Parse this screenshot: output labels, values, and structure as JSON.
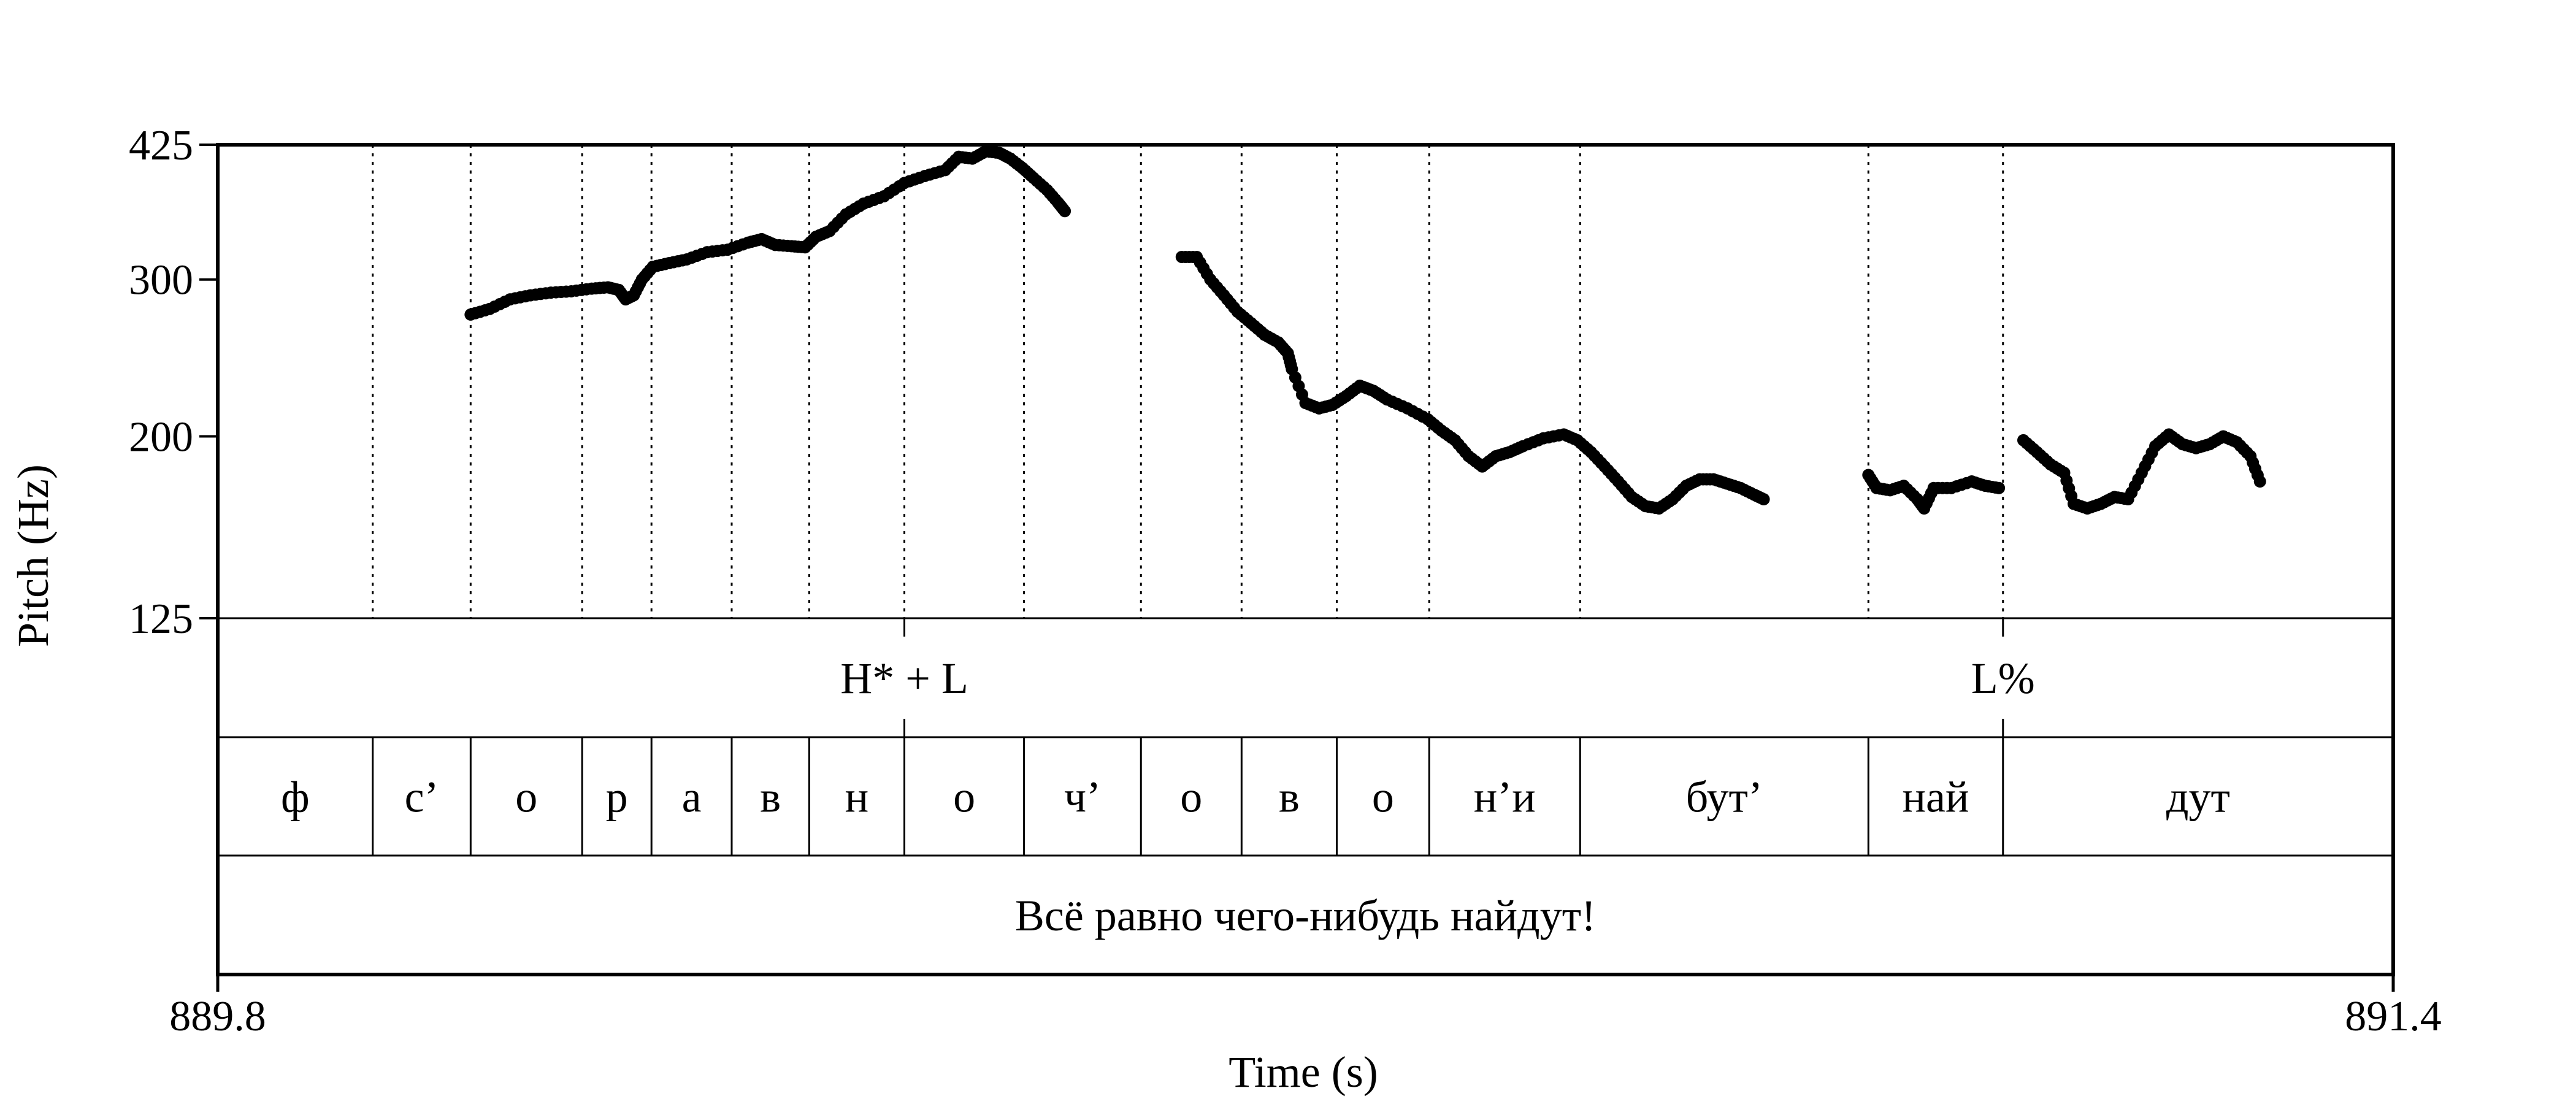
{
  "chart_data": {
    "type": "scatter",
    "title": "",
    "xlabel": "Time (s)",
    "ylabel": "Pitch (Hz)",
    "x_range": [
      889.8,
      891.4
    ],
    "x_tick_labels": [
      "889.8",
      "891.4"
    ],
    "y_range": [
      125,
      425
    ],
    "y_scale": "log",
    "y_ticks": [
      125,
      200,
      300,
      425
    ],
    "y_tick_labels": [
      "125",
      "200",
      "300",
      "425"
    ],
    "grid": false,
    "legend": "none",
    "colors": {
      "points": "#000000",
      "lines": "#000000"
    },
    "segment_boundaries_s": [
      889.914,
      889.986,
      890.068,
      890.119,
      890.178,
      890.235,
      890.305,
      890.393,
      890.479,
      890.553,
      890.623,
      890.691,
      890.802,
      891.014,
      891.113
    ],
    "tiers": [
      {
        "name": "tones",
        "intervals": [
          {
            "start": 889.8,
            "end": 890.305,
            "label": ""
          },
          {
            "start": 890.305,
            "end": 891.113,
            "label": "H* + L"
          },
          {
            "start": 891.113,
            "end": 891.4,
            "label": "L%"
          }
        ]
      },
      {
        "name": "segments",
        "intervals": [
          {
            "start": 889.8,
            "end": 889.914,
            "label": "ф"
          },
          {
            "start": 889.914,
            "end": 889.986,
            "label": "с’"
          },
          {
            "start": 889.986,
            "end": 890.068,
            "label": "о"
          },
          {
            "start": 890.068,
            "end": 890.119,
            "label": "р"
          },
          {
            "start": 890.119,
            "end": 890.178,
            "label": "а"
          },
          {
            "start": 890.178,
            "end": 890.235,
            "label": "в"
          },
          {
            "start": 890.235,
            "end": 890.305,
            "label": "н"
          },
          {
            "start": 890.305,
            "end": 890.393,
            "label": "о"
          },
          {
            "start": 890.393,
            "end": 890.479,
            "label": "ч’"
          },
          {
            "start": 890.479,
            "end": 890.553,
            "label": "о"
          },
          {
            "start": 890.553,
            "end": 890.623,
            "label": "в"
          },
          {
            "start": 890.623,
            "end": 890.691,
            "label": "о"
          },
          {
            "start": 890.691,
            "end": 890.802,
            "label": "н’и"
          },
          {
            "start": 890.802,
            "end": 891.014,
            "label": "бут’"
          },
          {
            "start": 891.014,
            "end": 891.113,
            "label": "най"
          },
          {
            "start": 891.113,
            "end": 891.4,
            "label": "дут"
          }
        ]
      },
      {
        "name": "sentence",
        "intervals": [
          {
            "start": 889.8,
            "end": 891.4,
            "label": "Всё равно чего-нибудь найдут!"
          }
        ]
      }
    ],
    "series": [
      {
        "points": [
          [
            889.986,
            274
          ],
          [
            890.0,
            278
          ],
          [
            890.015,
            285
          ],
          [
            890.03,
            288
          ],
          [
            890.045,
            290
          ],
          [
            890.06,
            291
          ],
          [
            890.075,
            293
          ],
          [
            890.087,
            294
          ],
          [
            890.095,
            292
          ],
          [
            890.1,
            285
          ],
          [
            890.106,
            288
          ],
          [
            890.112,
            300
          ],
          [
            890.12,
            310
          ],
          [
            890.132,
            313
          ],
          [
            890.145,
            316
          ],
          [
            890.16,
            322
          ],
          [
            890.175,
            324
          ],
          [
            890.19,
            330
          ],
          [
            890.2,
            333
          ],
          [
            890.21,
            328
          ],
          [
            890.222,
            327
          ],
          [
            890.232,
            326
          ],
          [
            890.24,
            335
          ],
          [
            890.25,
            340
          ],
          [
            890.262,
            355
          ],
          [
            890.275,
            365
          ],
          [
            890.29,
            372
          ],
          [
            890.305,
            385
          ],
          [
            890.32,
            392
          ],
          [
            890.335,
            398
          ],
          [
            890.345,
            412
          ],
          [
            890.355,
            410
          ],
          [
            890.365,
            418
          ],
          [
            890.375,
            416
          ],
          [
            890.383,
            410
          ],
          [
            890.392,
            400
          ],
          [
            890.4,
            390
          ],
          [
            890.41,
            378
          ],
          [
            890.418,
            366
          ],
          [
            890.423,
            358
          ]
        ]
      },
      {
        "points": [
          [
            890.509,
            318
          ],
          [
            890.52,
            318
          ],
          [
            890.53,
            300
          ],
          [
            890.54,
            288
          ],
          [
            890.55,
            276
          ],
          [
            890.56,
            268
          ],
          [
            890.57,
            260
          ],
          [
            890.58,
            255
          ],
          [
            890.587,
            248
          ],
          [
            890.59,
            238
          ],
          [
            890.6,
            218
          ],
          [
            890.61,
            215
          ],
          [
            890.62,
            217
          ],
          [
            890.63,
            222
          ],
          [
            890.64,
            228
          ],
          [
            890.65,
            225
          ],
          [
            890.66,
            220
          ],
          [
            890.675,
            215
          ],
          [
            890.69,
            209
          ],
          [
            890.7,
            203
          ],
          [
            890.71,
            198
          ],
          [
            890.72,
            190
          ],
          [
            890.73,
            185
          ],
          [
            890.74,
            190
          ],
          [
            890.75,
            192
          ],
          [
            890.76,
            195
          ],
          [
            890.775,
            199
          ],
          [
            890.79,
            201
          ],
          [
            890.8,
            198
          ],
          [
            890.81,
            192
          ],
          [
            890.82,
            185
          ],
          [
            890.83,
            178
          ],
          [
            890.84,
            171
          ],
          [
            890.85,
            167
          ],
          [
            890.86,
            166
          ],
          [
            890.87,
            170
          ],
          [
            890.88,
            176
          ],
          [
            890.89,
            179
          ],
          [
            890.9,
            179
          ],
          [
            890.91,
            177
          ],
          [
            890.92,
            175
          ],
          [
            890.93,
            172
          ],
          [
            890.937,
            170
          ]
        ]
      },
      {
        "points": [
          [
            891.014,
            181
          ],
          [
            891.02,
            175
          ],
          [
            891.03,
            174
          ],
          [
            891.04,
            176
          ],
          [
            891.05,
            170
          ],
          [
            891.055,
            166
          ],
          [
            891.062,
            175
          ],
          [
            891.075,
            175
          ],
          [
            891.09,
            178
          ],
          [
            891.1,
            176
          ],
          [
            891.11,
            175
          ]
        ]
      },
      {
        "points": [
          [
            891.128,
            198
          ],
          [
            891.138,
            192
          ],
          [
            891.148,
            186
          ],
          [
            891.158,
            182
          ],
          [
            891.165,
            168
          ],
          [
            891.175,
            166
          ],
          [
            891.185,
            168
          ],
          [
            891.195,
            171
          ],
          [
            891.205,
            170
          ],
          [
            891.215,
            182
          ],
          [
            891.225,
            195
          ],
          [
            891.235,
            201
          ],
          [
            891.245,
            196
          ],
          [
            891.255,
            194
          ],
          [
            891.265,
            196
          ],
          [
            891.275,
            200
          ],
          [
            891.285,
            197
          ],
          [
            891.295,
            190
          ],
          [
            891.302,
            178
          ]
        ]
      }
    ]
  }
}
